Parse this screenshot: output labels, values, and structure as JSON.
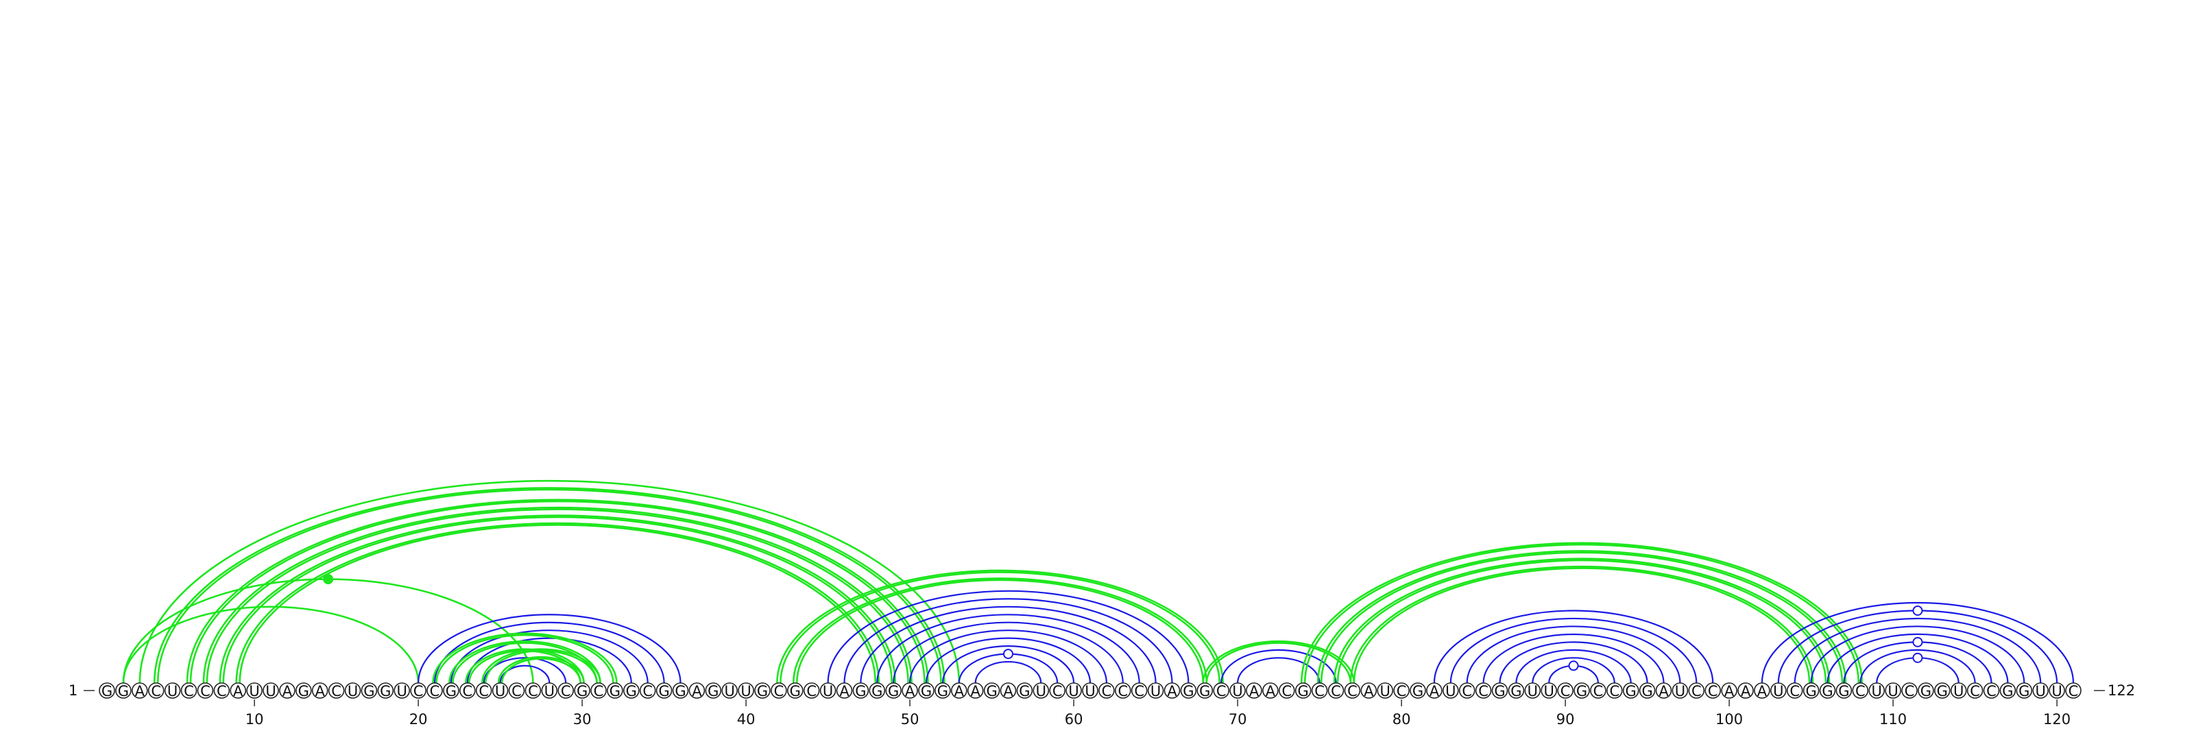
{
  "sequence": "GGACUCCCAUUAGACUGGUCCGCCUCCUCGCGGCGGAGUUGCGCUAGGGAGGAAGAGUCUUCCCUAGGCUAACGCCCAUCGAUCCGGUUCGCCGGAUCCAAAUCGGGCUUCGGUCCGGUUC",
  "start_label": "1",
  "end_label": "122",
  "ticks": [
    10,
    20,
    30,
    40,
    50,
    60,
    70,
    80,
    90,
    100,
    110,
    120
  ],
  "colors": {
    "blue": "#1a1ae6",
    "green": "#1ee61e"
  },
  "pairs": [
    {
      "i": 2,
      "j": 27,
      "style": "green-thin",
      "marker": "filled-dot"
    },
    {
      "i": 3,
      "j": 53,
      "style": "green-thin"
    },
    {
      "i": 4,
      "j": 52,
      "style": "green-double"
    },
    {
      "i": 6,
      "j": 51,
      "style": "green-double"
    },
    {
      "i": 7,
      "j": 50,
      "style": "green-double"
    },
    {
      "i": 8,
      "j": 49,
      "style": "green-double"
    },
    {
      "i": 9,
      "j": 48,
      "style": "green-double"
    },
    {
      "i": 2,
      "j": 20,
      "style": "green-thin"
    },
    {
      "i": 20,
      "j": 36,
      "style": "blue"
    },
    {
      "i": 21,
      "j": 35,
      "style": "blue"
    },
    {
      "i": 22,
      "j": 34,
      "style": "blue"
    },
    {
      "i": 23,
      "j": 33,
      "style": "blue"
    },
    {
      "i": 21,
      "j": 32,
      "style": "green-double"
    },
    {
      "i": 22,
      "j": 31,
      "style": "green-double"
    },
    {
      "i": 23,
      "j": 30,
      "style": "green-double"
    },
    {
      "i": 24,
      "j": 29,
      "style": "blue"
    },
    {
      "i": 25,
      "j": 28,
      "style": "blue"
    },
    {
      "i": 24,
      "j": 31,
      "style": "green-double"
    },
    {
      "i": 25,
      "j": 30,
      "style": "green-double"
    },
    {
      "i": 42,
      "j": 69,
      "style": "green-double"
    },
    {
      "i": 43,
      "j": 68,
      "style": "green-double"
    },
    {
      "i": 45,
      "j": 67,
      "style": "blue"
    },
    {
      "i": 46,
      "j": 66,
      "style": "blue"
    },
    {
      "i": 47,
      "j": 65,
      "style": "blue"
    },
    {
      "i": 48,
      "j": 64,
      "style": "blue"
    },
    {
      "i": 49,
      "j": 63,
      "style": "blue"
    },
    {
      "i": 50,
      "j": 62,
      "style": "blue"
    },
    {
      "i": 51,
      "j": 61,
      "style": "blue"
    },
    {
      "i": 52,
      "j": 60,
      "style": "blue"
    },
    {
      "i": 53,
      "j": 59,
      "style": "blue",
      "marker": "open-dot"
    },
    {
      "i": 54,
      "j": 58,
      "style": "blue"
    },
    {
      "i": 68,
      "j": 77,
      "style": "green-double"
    },
    {
      "i": 69,
      "j": 76,
      "style": "blue"
    },
    {
      "i": 70,
      "j": 75,
      "style": "blue"
    },
    {
      "i": 74,
      "j": 108,
      "style": "green-double"
    },
    {
      "i": 75,
      "j": 107,
      "style": "green-double"
    },
    {
      "i": 76,
      "j": 106,
      "style": "green-double"
    },
    {
      "i": 77,
      "j": 105,
      "style": "green-double"
    },
    {
      "i": 82,
      "j": 99,
      "style": "blue"
    },
    {
      "i": 83,
      "j": 98,
      "style": "blue"
    },
    {
      "i": 84,
      "j": 97,
      "style": "blue"
    },
    {
      "i": 85,
      "j": 96,
      "style": "blue"
    },
    {
      "i": 86,
      "j": 95,
      "style": "blue"
    },
    {
      "i": 87,
      "j": 94,
      "style": "blue"
    },
    {
      "i": 88,
      "j": 93,
      "style": "blue"
    },
    {
      "i": 89,
      "j": 92,
      "style": "blue",
      "marker": "open-dot"
    },
    {
      "i": 102,
      "j": 121,
      "style": "blue"
    },
    {
      "i": 103,
      "j": 120,
      "style": "blue",
      "marker": "open-dot"
    },
    {
      "i": 104,
      "j": 119,
      "style": "blue"
    },
    {
      "i": 105,
      "j": 118,
      "style": "blue"
    },
    {
      "i": 106,
      "j": 117,
      "style": "blue"
    },
    {
      "i": 107,
      "j": 116,
      "style": "blue",
      "marker": "open-dot"
    },
    {
      "i": 108,
      "j": 115,
      "style": "blue"
    },
    {
      "i": 109,
      "j": 114,
      "style": "blue",
      "marker": "open-dot"
    }
  ]
}
